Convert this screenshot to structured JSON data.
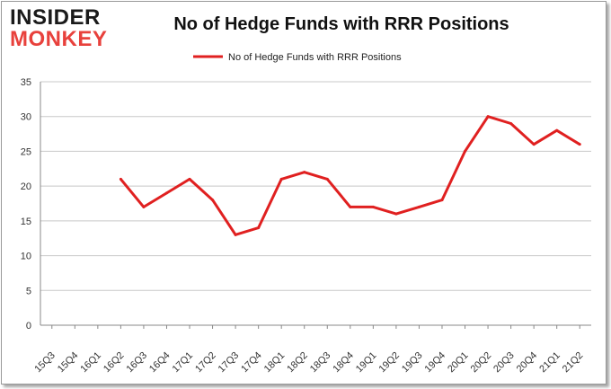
{
  "logo": {
    "line1": "INSIDER",
    "line2": "MONKEY"
  },
  "title": "No of Hedge Funds with RRR Positions",
  "legend": {
    "label": "No of Hedge Funds with RRR Positions",
    "color": "#e02020"
  },
  "colors": {
    "line": "#e02020",
    "grid": "#c8c8c8",
    "axis": "#888888",
    "logo_accent": "#e8413c"
  },
  "chart_data": {
    "type": "line",
    "title": "No of Hedge Funds with RRR Positions",
    "xlabel": "",
    "ylabel": "",
    "ylim": [
      0,
      35
    ],
    "yticks": [
      0,
      5,
      10,
      15,
      20,
      25,
      30,
      35
    ],
    "grid": true,
    "legend_position": "top",
    "categories": [
      "15Q3",
      "15Q4",
      "16Q1",
      "16Q2",
      "16Q3",
      "16Q4",
      "17Q1",
      "17Q2",
      "17Q3",
      "17Q4",
      "18Q1",
      "18Q2",
      "18Q3",
      "18Q4",
      "19Q1",
      "19Q2",
      "19Q3",
      "19Q4",
      "20Q1",
      "20Q2",
      "20Q3",
      "20Q4",
      "21Q1",
      "21Q2"
    ],
    "series": [
      {
        "name": "No of Hedge Funds with RRR Positions",
        "values": [
          null,
          null,
          null,
          21,
          17,
          19,
          21,
          18,
          13,
          14,
          21,
          22,
          21,
          17,
          17,
          16,
          17,
          18,
          25,
          30,
          29,
          26,
          28,
          26
        ]
      }
    ]
  }
}
